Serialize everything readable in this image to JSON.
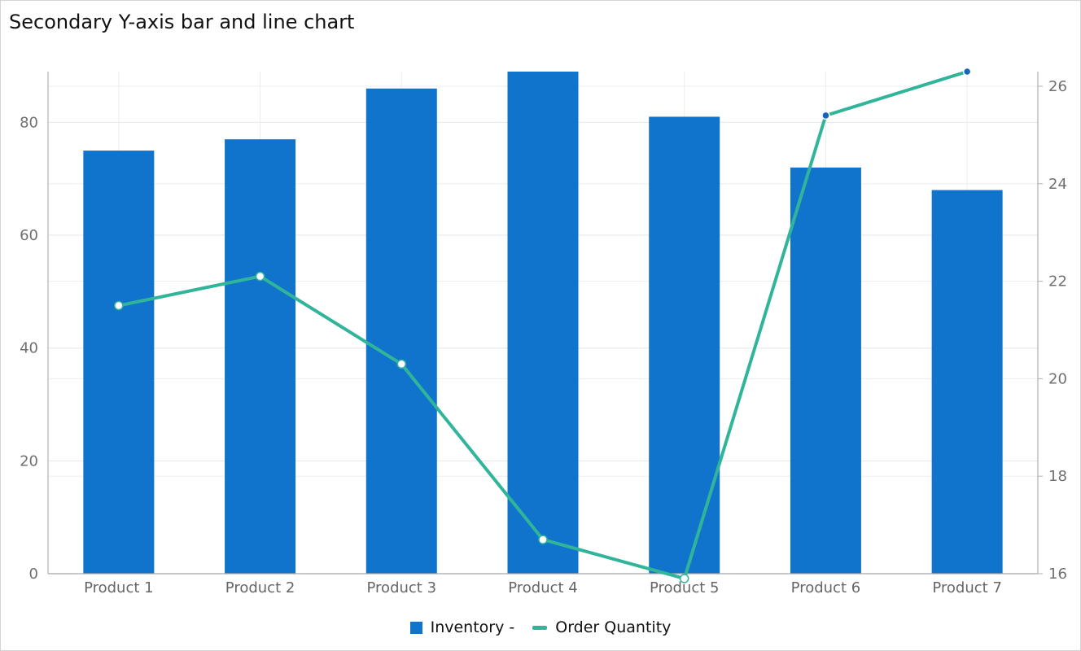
{
  "title": "Secondary Y-axis bar and line chart",
  "chart_data": {
    "type": "bar",
    "title": "Secondary Y-axis bar and line chart",
    "categories": [
      "Product 1",
      "Product 2",
      "Product 3",
      "Product 4",
      "Product 5",
      "Product 6",
      "Product 7"
    ],
    "series": [
      {
        "name": "Inventory -",
        "type": "bar",
        "axis": "left",
        "color": "#1174cc",
        "values": [
          75,
          77,
          86,
          89,
          81,
          72,
          68
        ]
      },
      {
        "name": "Order Quantity",
        "type": "line",
        "axis": "right",
        "color": "#31b59a",
        "values": [
          21.5,
          22.1,
          20.3,
          16.7,
          15.9,
          25.4,
          26.3
        ]
      }
    ],
    "y_left": {
      "ticks": [
        0,
        20,
        40,
        60,
        80
      ],
      "range": [
        0,
        89
      ]
    },
    "y_right": {
      "ticks": [
        16,
        18,
        20,
        22,
        24,
        26
      ],
      "range": [
        16,
        26.3
      ]
    },
    "grid": true,
    "legend_position": "bottom"
  }
}
